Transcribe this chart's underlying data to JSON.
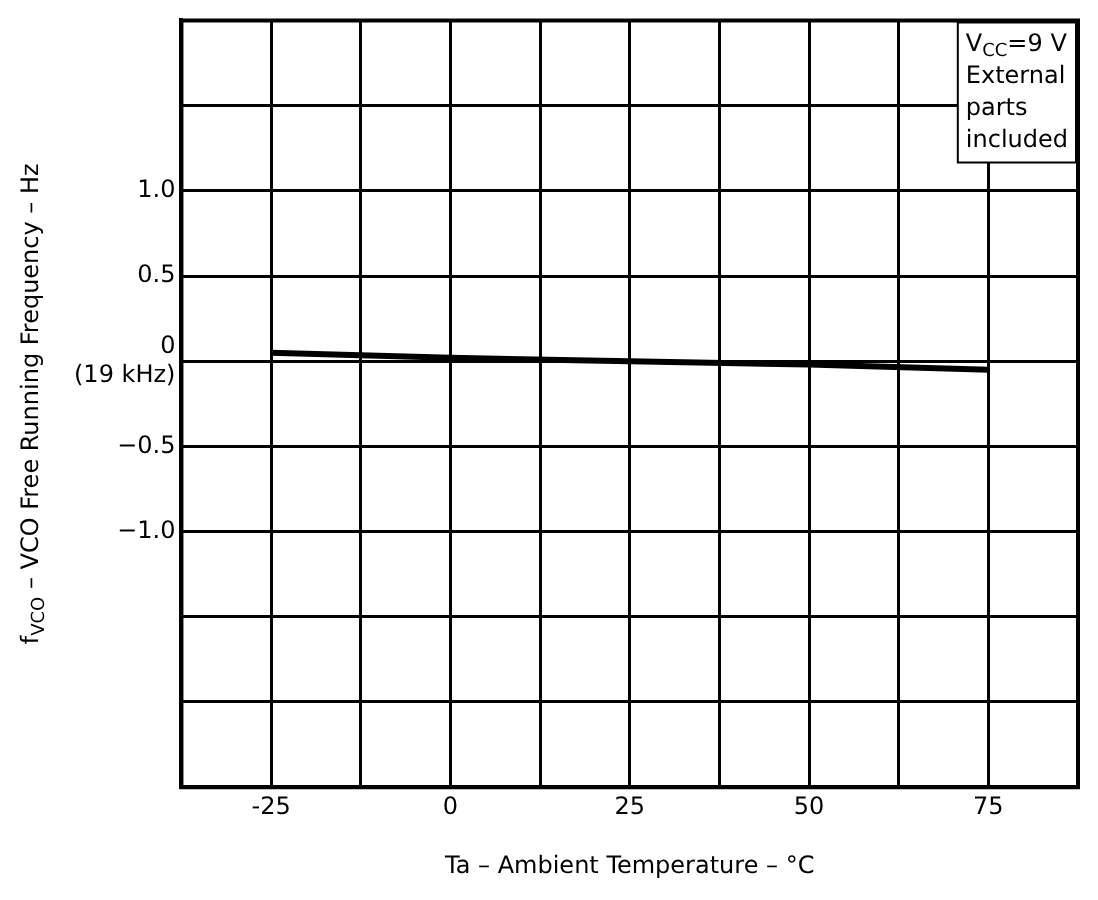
{
  "chart_data": {
    "type": "line",
    "xlabel": "Ta – Ambient Temperature – °C",
    "ylabel": "f$_{VCO}$ – VCO Free Running Frequency – Hz",
    "x": [
      -25,
      0,
      25,
      50,
      75
    ],
    "series": [
      {
        "color": "#000000",
        "values": [
          0.05,
          0.02,
          0,
          -0.02,
          -0.05
        ]
      }
    ],
    "xlim": [
      -37.5,
      87.5
    ],
    "xticks": [
      {
        "value": -37.5,
        "label": null
      },
      -25,
      {
        "value": -12.5,
        "label": null
      },
      0,
      {
        "value": 12.5,
        "label": null
      },
      25,
      {
        "value": 37.5,
        "label": null
      },
      50,
      {
        "value": 62.5,
        "label": null
      },
      75,
      {
        "value": 87.5,
        "label": null
      }
    ],
    "ylim": [
      -2.5,
      2.0
    ],
    "yticks": [
      {
        "value": -2.5,
        "label": null
      },
      {
        "value": -2.0,
        "label": null
      },
      {
        "value": -1.5,
        "label": null
      },
      {
        "value": -1.0,
        "label": "−1.0"
      },
      {
        "value": -0.5,
        "label": "−0.5"
      },
      {
        "value": 0,
        "label": "0\n(19 kHz)"
      },
      {
        "value": 0.5,
        "label": "0.5"
      },
      {
        "value": 1.0,
        "label": "1.0"
      },
      {
        "value": 1.5,
        "label": null
      },
      {
        "value": 2.0,
        "label": null
      }
    ],
    "grid": true,
    "legend": false,
    "marker": "none",
    "line_style": "solid",
    "annotations": [
      "V$_{CC}$=9 V\nExternal\nparts\nincluded"
    ]
  }
}
